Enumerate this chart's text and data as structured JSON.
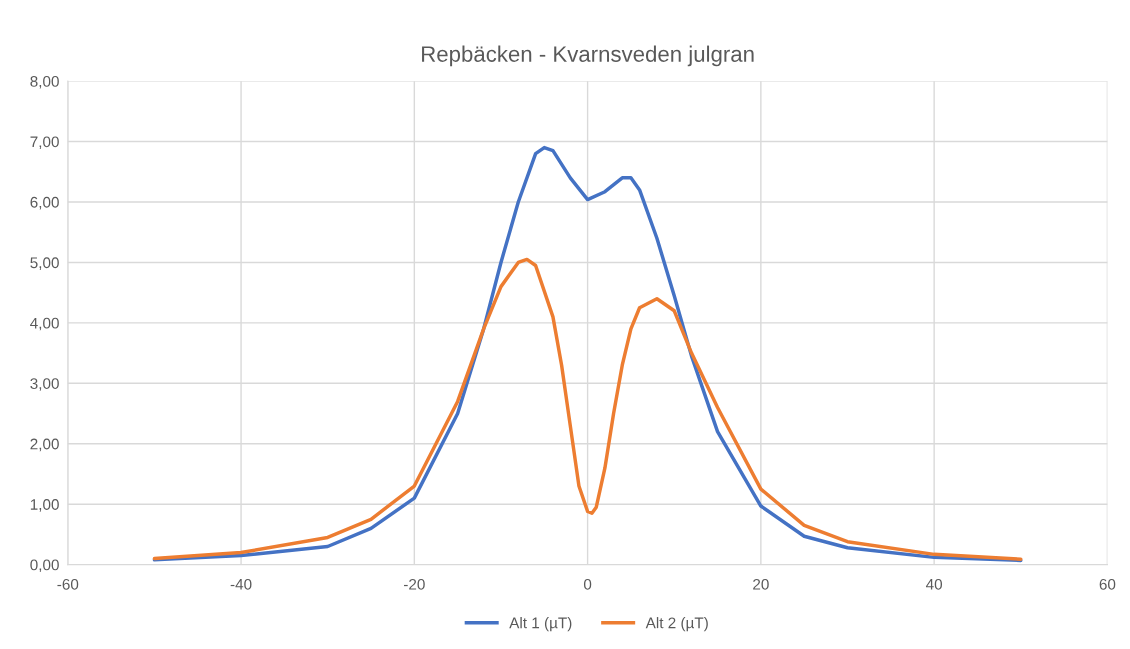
{
  "chart_data": {
    "type": "line",
    "title": "Repbäcken - Kvarnsveden julgran",
    "xlim": [
      -60,
      60
    ],
    "xticks": [
      -60,
      -40,
      -20,
      0,
      20,
      40,
      60
    ],
    "ylim": [
      0,
      8
    ],
    "yticks": [
      {
        "value": 0,
        "label": "0,00"
      },
      {
        "value": 1,
        "label": "1,00"
      },
      {
        "value": 2,
        "label": "2,00"
      },
      {
        "value": 3,
        "label": "3,00"
      },
      {
        "value": 4,
        "label": "4,00"
      },
      {
        "value": 5,
        "label": "5,00"
      },
      {
        "value": 6,
        "label": "6,00"
      },
      {
        "value": 7,
        "label": "7,00"
      },
      {
        "value": 8,
        "label": "8,00"
      }
    ],
    "grid": true,
    "legend": "bottom",
    "marker": "none",
    "line_style": "solid",
    "series": [
      {
        "name": "Alt 1 (µT)",
        "color": "#4472c4",
        "x": [
          -50,
          -40,
          -30,
          -25,
          -20,
          -15,
          -12,
          -10,
          -8,
          -6,
          -5,
          -4,
          -2,
          0,
          2,
          4,
          5,
          6,
          8,
          10,
          12,
          15,
          20,
          25,
          30,
          40,
          50
        ],
        "values": [
          0.08,
          0.15,
          0.3,
          0.6,
          1.1,
          2.5,
          3.9,
          5.0,
          6.0,
          6.8,
          6.9,
          6.85,
          6.4,
          6.04,
          6.17,
          6.4,
          6.4,
          6.2,
          5.4,
          4.45,
          3.45,
          2.2,
          0.97,
          0.47,
          0.28,
          0.12,
          0.07
        ]
      },
      {
        "name": "Alt 2 (µT)",
        "color": "#ed7d31",
        "x": [
          -50,
          -40,
          -30,
          -25,
          -20,
          -15,
          -12,
          -10,
          -8,
          -7,
          -6,
          -4,
          -3,
          -2,
          -1,
          0,
          0.5,
          1,
          2,
          3,
          4,
          5,
          6,
          8,
          10,
          12,
          15,
          20,
          25,
          30,
          40,
          50
        ],
        "values": [
          0.1,
          0.2,
          0.45,
          0.75,
          1.3,
          2.7,
          3.9,
          4.6,
          5.0,
          5.05,
          4.95,
          4.1,
          3.3,
          2.3,
          1.3,
          0.88,
          0.85,
          0.95,
          1.6,
          2.5,
          3.3,
          3.9,
          4.25,
          4.4,
          4.2,
          3.5,
          2.6,
          1.25,
          0.65,
          0.38,
          0.17,
          0.09
        ]
      }
    ]
  }
}
